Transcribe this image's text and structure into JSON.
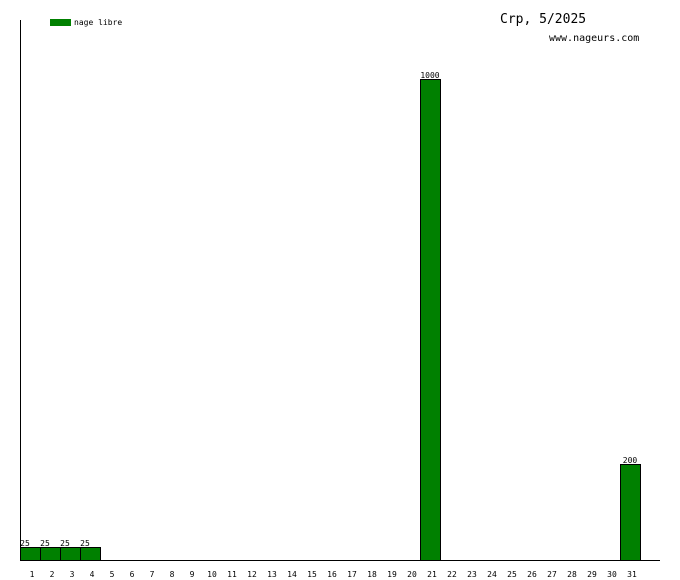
{
  "chart_data": {
    "type": "bar",
    "title": "Crp, 5/2025",
    "subtitle": "www.nageurs.com",
    "legend": [
      {
        "name": "nage libre",
        "color": "#008000"
      }
    ],
    "categories": [
      "1",
      "2",
      "3",
      "4",
      "5",
      "6",
      "7",
      "8",
      "9",
      "10",
      "11",
      "12",
      "13",
      "14",
      "15",
      "16",
      "17",
      "18",
      "19",
      "20",
      "21",
      "22",
      "23",
      "24",
      "25",
      "26",
      "27",
      "28",
      "29",
      "30",
      "31"
    ],
    "series": [
      {
        "name": "nage libre",
        "color": "#008000",
        "values": [
          25,
          25,
          25,
          25,
          0,
          0,
          0,
          0,
          0,
          0,
          0,
          0,
          0,
          0,
          0,
          0,
          0,
          0,
          0,
          0,
          1000,
          0,
          0,
          0,
          0,
          0,
          0,
          0,
          0,
          0,
          200
        ]
      }
    ],
    "ylim": [
      0,
      1000
    ],
    "grid": false,
    "legend_position": "top-left"
  }
}
